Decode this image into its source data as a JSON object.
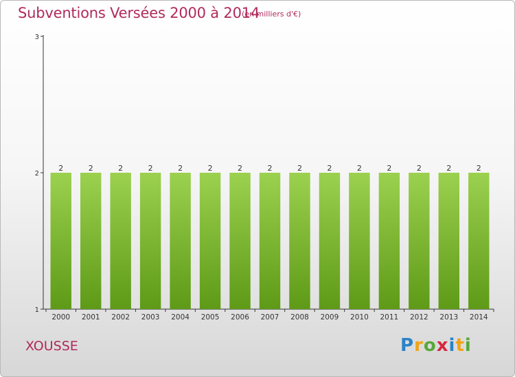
{
  "header": {
    "title": "Subventions Versées 2000 à 2014",
    "unit": "(en milliers d'€)"
  },
  "footer": {
    "commune": "XOUSSE",
    "logo_text": "Proxiti",
    "logo_letters": [
      {
        "ch": "P",
        "color": "#2a83c8"
      },
      {
        "ch": "r",
        "color": "#f0a417"
      },
      {
        "ch": "o",
        "color": "#56a83a"
      },
      {
        "ch": "x",
        "color": "#d6283e"
      },
      {
        "ch": "i",
        "color": "#2a83c8"
      },
      {
        "ch": "t",
        "color": "#f0a417"
      },
      {
        "ch": "i",
        "color": "#56a83a"
      }
    ]
  },
  "colors": {
    "bar_top": "#9bd14f",
    "bar_bottom": "#5e9a17",
    "axis": "#333333",
    "label": "#333333"
  },
  "chart_data": {
    "type": "bar",
    "categories": [
      "2000",
      "2001",
      "2002",
      "2003",
      "2004",
      "2005",
      "2006",
      "2007",
      "2008",
      "2009",
      "2010",
      "2011",
      "2012",
      "2013",
      "2014"
    ],
    "values": [
      2,
      2,
      2,
      2,
      2,
      2,
      2,
      2,
      2,
      2,
      2,
      2,
      2,
      2,
      2
    ],
    "data_labels": [
      "2",
      "2",
      "2",
      "2",
      "2",
      "2",
      "2",
      "2",
      "2",
      "2",
      "2",
      "2",
      "2",
      "2",
      "2"
    ],
    "title": "Subventions Versées 2000 à 2014",
    "xlabel": "",
    "ylabel": "",
    "ylim": [
      1,
      3
    ],
    "yticks": [
      1,
      2,
      3
    ],
    "grid": false,
    "legend": "none"
  }
}
